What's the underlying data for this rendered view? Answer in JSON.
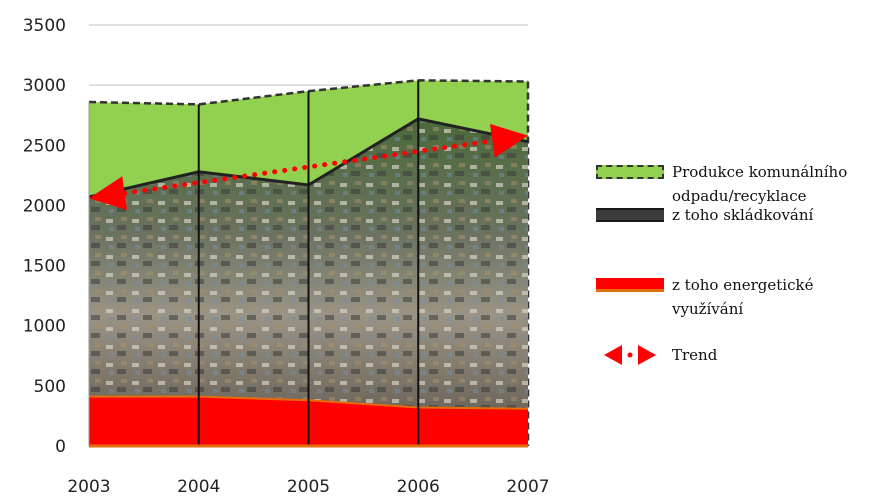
{
  "chart_data": {
    "type": "area",
    "title": "",
    "xlabel": "",
    "ylabel": "",
    "x": [
      2003,
      2004,
      2005,
      2006,
      2007
    ],
    "ylim": [
      0,
      3500
    ],
    "yticks": [
      0,
      500,
      1000,
      1500,
      2000,
      2500,
      3000,
      3500
    ],
    "grid": true,
    "legend_position": "right",
    "series": [
      {
        "name": "Produkce komunálního odpadu/recyklace",
        "values": [
          2860,
          2840,
          2950,
          3040,
          3030
        ],
        "color": "#92d050"
      },
      {
        "name": "z toho skládkování",
        "values": [
          2070,
          2280,
          2170,
          2720,
          2530
        ],
        "color": "#3c3c3c"
      },
      {
        "name": "z toho energetické využívání",
        "values": [
          410,
          410,
          380,
          320,
          310
        ],
        "color": "#ff0000"
      },
      {
        "name": "Trend",
        "values": [
          2060,
          null,
          null,
          null,
          2580
        ],
        "color": "#ff0000"
      }
    ]
  },
  "legend": {
    "items": [
      {
        "lines": [
          "Produkce komunálního",
          "odpadu/recyklace"
        ]
      },
      {
        "lines": [
          "z toho skládkování"
        ]
      },
      {
        "lines": [
          "z toho energetické",
          "využívání"
        ]
      },
      {
        "lines": [
          "Trend"
        ]
      }
    ]
  }
}
